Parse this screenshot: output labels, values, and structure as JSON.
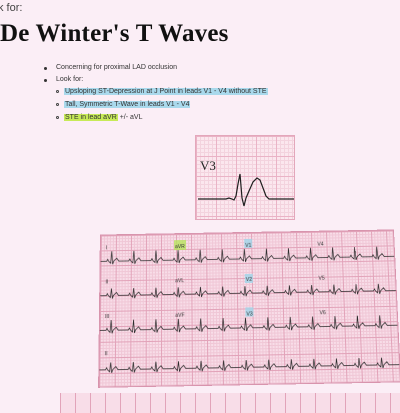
{
  "header": {
    "top_line": "k for:",
    "title": "De Winter's T Waves"
  },
  "list": {
    "items": [
      "Concerning for proximal LAD occlusion",
      "Look for:"
    ],
    "subitems": [
      {
        "text": "Upsloping ST-Depression at J Point in leads V1 - V4 without STE",
        "highlight": "Upsloping ST-Depression at J Point in leads V1 - V4 without STE",
        "rest": "",
        "color": "#a9d9ec"
      },
      {
        "text": "Tall, Symmetric T-Wave in leads V1 - V4",
        "highlight": "Tall, Symmetric T-Wave in leads V1 - V4",
        "rest": "",
        "color": "#a9d9ec"
      },
      {
        "text": "STE in lead aVR +/- aVL",
        "highlight": "STE in lead aVR",
        "rest": " +/- aVL",
        "color": "#c7ea57"
      }
    ]
  },
  "ecg_inset": {
    "lead_label": "V3"
  },
  "ecg_12lead": {
    "lead_labels": [
      "I",
      "aVR",
      "V1",
      "V4",
      "II",
      "aVL",
      "V2",
      "V5",
      "III",
      "aVF",
      "V3",
      "V6",
      "II"
    ]
  }
}
